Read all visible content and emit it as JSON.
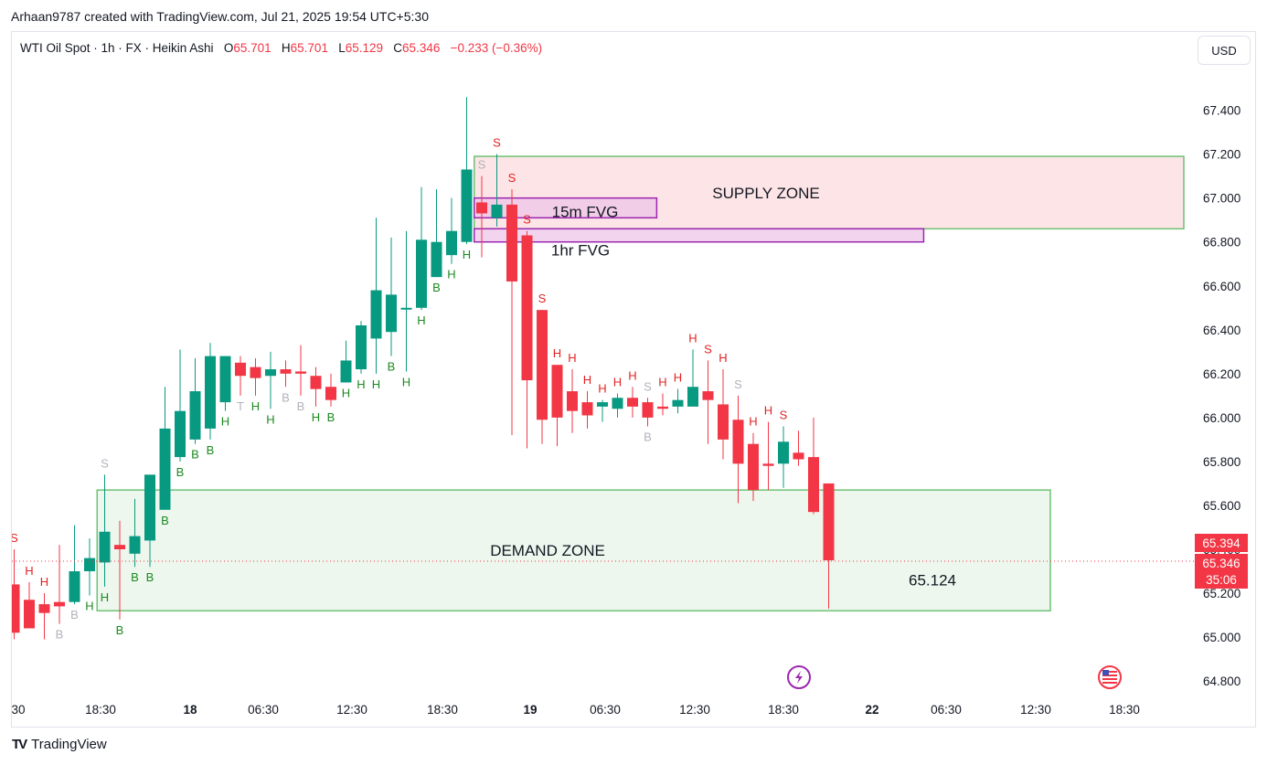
{
  "header": {
    "attribution": "Arhaan9787 created with TradingView.com, Jul 21, 2025 19:54 UTC+5:30"
  },
  "legend": {
    "symbol": "WTI Oil Spot · 1h · FX · Heikin Ashi",
    "open_label": "O",
    "open": "65.701",
    "high_label": "H",
    "high": "65.701",
    "low_label": "L",
    "low": "65.129",
    "close_label": "C",
    "close": "65.346",
    "change": "−0.233 (−0.36%)"
  },
  "currency_button": "USD",
  "footer": {
    "brand": "TradingView",
    "logo": "TV"
  },
  "colors": {
    "up": "#089981",
    "down": "#f23645",
    "supply_fill": "#fde4e6",
    "demand_fill": "#edf7ee",
    "zone_border": "#6fc275",
    "fvg_border": "#9c27b0",
    "fvg_fill": "#eec6e8",
    "label_green": "#1b8a1f",
    "label_red": "#e32222",
    "label_gray": "#b0b3bb",
    "event_icon": "#9c27b0",
    "flag_icon": "us-flag-icon"
  },
  "chart_data": {
    "type": "candlestick",
    "style": "Heikin Ashi",
    "y_axis": {
      "ticks": [
        "67.400",
        "67.200",
        "67.000",
        "66.800",
        "66.600",
        "66.400",
        "66.200",
        "66.000",
        "65.800",
        "65.600",
        "65.400",
        "65.200",
        "65.000",
        "64.800"
      ],
      "range": [
        64.72,
        67.62
      ],
      "side": "right"
    },
    "x_axis": {
      "ticks": [
        "30",
        "18:30",
        "18",
        "06:30",
        "12:30",
        "18:30",
        "19",
        "06:30",
        "12:30",
        "18:30",
        "22",
        "06:30",
        "12:30",
        "18:30"
      ]
    },
    "price_labels": [
      {
        "value": 65.394,
        "text": "65.394"
      },
      {
        "value": 65.346,
        "text": "65.346"
      }
    ],
    "countdown": "35:06",
    "current_price_line": 65.346,
    "candles": [
      [
        64.99,
        65.4,
        65.24,
        65.02
      ],
      [
        65.05,
        65.25,
        65.17,
        65.04
      ],
      [
        64.99,
        65.2,
        65.15,
        65.11
      ],
      [
        65.06,
        65.42,
        65.16,
        65.14
      ],
      [
        65.15,
        65.51,
        65.16,
        65.3
      ],
      [
        65.19,
        65.45,
        65.3,
        65.36
      ],
      [
        65.23,
        65.74,
        65.34,
        65.48
      ],
      [
        65.08,
        65.53,
        65.42,
        65.4
      ],
      [
        65.32,
        65.63,
        65.38,
        65.46
      ],
      [
        65.32,
        65.58,
        65.44,
        65.74
      ],
      [
        65.58,
        66.14,
        65.58,
        65.95
      ],
      [
        65.8,
        66.31,
        65.82,
        66.03
      ],
      [
        65.88,
        66.27,
        65.9,
        66.12
      ],
      [
        65.9,
        66.34,
        65.95,
        66.28
      ],
      [
        66.03,
        66.28,
        66.07,
        66.28
      ],
      [
        66.1,
        66.28,
        66.25,
        66.19
      ],
      [
        66.1,
        66.27,
        66.23,
        66.18
      ],
      [
        66.04,
        66.3,
        66.19,
        66.22
      ],
      [
        66.14,
        66.26,
        66.22,
        66.2
      ],
      [
        66.1,
        66.33,
        66.21,
        66.2
      ],
      [
        66.05,
        66.23,
        66.19,
        66.13
      ],
      [
        66.05,
        66.2,
        66.14,
        66.08
      ],
      [
        66.16,
        66.35,
        66.16,
        66.26
      ],
      [
        66.2,
        66.44,
        66.22,
        66.42
      ],
      [
        66.2,
        66.91,
        66.36,
        66.58
      ],
      [
        66.28,
        66.82,
        66.39,
        66.56
      ],
      [
        66.21,
        66.85,
        66.5,
        66.5
      ],
      [
        66.49,
        67.05,
        66.5,
        66.81
      ],
      [
        66.64,
        67.04,
        66.64,
        66.8
      ],
      [
        66.7,
        67.0,
        66.74,
        66.85
      ],
      [
        66.79,
        67.46,
        66.8,
        67.13
      ],
      [
        66.73,
        67.1,
        66.98,
        66.93
      ],
      [
        66.87,
        67.2,
        66.91,
        66.97
      ],
      [
        65.92,
        67.04,
        66.97,
        66.62
      ],
      [
        65.86,
        66.85,
        66.83,
        66.17
      ],
      [
        65.88,
        66.49,
        66.49,
        65.99
      ],
      [
        65.87,
        66.24,
        66.24,
        66.0
      ],
      [
        65.93,
        66.22,
        66.12,
        66.03
      ],
      [
        65.95,
        66.12,
        66.07,
        66.01
      ],
      [
        65.98,
        66.08,
        66.05,
        66.07
      ],
      [
        66.0,
        66.11,
        66.04,
        66.09
      ],
      [
        66.0,
        66.14,
        66.09,
        66.05
      ],
      [
        65.96,
        66.09,
        66.07,
        66.0
      ],
      [
        66.01,
        66.11,
        66.05,
        66.04
      ],
      [
        66.02,
        66.13,
        66.05,
        66.08
      ],
      [
        66.05,
        66.31,
        66.05,
        66.14
      ],
      [
        65.88,
        66.26,
        66.12,
        66.08
      ],
      [
        65.81,
        66.22,
        66.06,
        65.9
      ],
      [
        65.61,
        66.1,
        65.99,
        65.79
      ],
      [
        65.62,
        65.93,
        65.88,
        65.67
      ],
      [
        65.67,
        65.98,
        65.79,
        65.78
      ],
      [
        65.68,
        65.96,
        65.79,
        65.89
      ],
      [
        65.78,
        65.94,
        65.84,
        65.81
      ],
      [
        65.56,
        66.0,
        65.82,
        65.57
      ],
      [
        65.13,
        65.7,
        65.7,
        65.35
      ]
    ],
    "signals": [
      {
        "i": 0,
        "t": "S",
        "c": "red",
        "p": "above"
      },
      {
        "i": 1,
        "t": "H",
        "c": "red",
        "p": "above"
      },
      {
        "i": 2,
        "t": "H",
        "c": "red",
        "p": "above"
      },
      {
        "i": 3,
        "t": "B",
        "c": "gray",
        "p": "below"
      },
      {
        "i": 4,
        "t": "B",
        "c": "gray",
        "p": "below"
      },
      {
        "i": 5,
        "t": "H",
        "c": "green",
        "p": "below"
      },
      {
        "i": 6,
        "t": "S",
        "c": "gray",
        "p": "above"
      },
      {
        "i": 6,
        "t": "H",
        "c": "green",
        "p": "below"
      },
      {
        "i": 7,
        "t": "B",
        "c": "green",
        "p": "below"
      },
      {
        "i": 8,
        "t": "B",
        "c": "green",
        "p": "below"
      },
      {
        "i": 9,
        "t": "B",
        "c": "green",
        "p": "below"
      },
      {
        "i": 10,
        "t": "B",
        "c": "green",
        "p": "below"
      },
      {
        "i": 11,
        "t": "B",
        "c": "green",
        "p": "below"
      },
      {
        "i": 12,
        "t": "B",
        "c": "green",
        "p": "below"
      },
      {
        "i": 13,
        "t": "B",
        "c": "green",
        "p": "below"
      },
      {
        "i": 14,
        "t": "H",
        "c": "green",
        "p": "below"
      },
      {
        "i": 15,
        "t": "T",
        "c": "gray",
        "p": "below"
      },
      {
        "i": 16,
        "t": "H",
        "c": "green",
        "p": "below"
      },
      {
        "i": 17,
        "t": "H",
        "c": "green",
        "p": "below"
      },
      {
        "i": 18,
        "t": "B",
        "c": "gray",
        "p": "below"
      },
      {
        "i": 19,
        "t": "B",
        "c": "gray",
        "p": "below"
      },
      {
        "i": 20,
        "t": "H",
        "c": "green",
        "p": "below"
      },
      {
        "i": 21,
        "t": "B",
        "c": "green",
        "p": "below"
      },
      {
        "i": 22,
        "t": "H",
        "c": "green",
        "p": "below"
      },
      {
        "i": 23,
        "t": "H",
        "c": "green",
        "p": "below"
      },
      {
        "i": 24,
        "t": "H",
        "c": "green",
        "p": "below"
      },
      {
        "i": 25,
        "t": "B",
        "c": "green",
        "p": "below"
      },
      {
        "i": 26,
        "t": "H",
        "c": "green",
        "p": "below"
      },
      {
        "i": 27,
        "t": "H",
        "c": "green",
        "p": "below"
      },
      {
        "i": 28,
        "t": "B",
        "c": "green",
        "p": "below"
      },
      {
        "i": 29,
        "t": "H",
        "c": "green",
        "p": "below"
      },
      {
        "i": 30,
        "t": "H",
        "c": "green",
        "p": "below"
      },
      {
        "i": 31,
        "t": "S",
        "c": "gray",
        "p": "above"
      },
      {
        "i": 32,
        "t": "S",
        "c": "red",
        "p": "above"
      },
      {
        "i": 33,
        "t": "S",
        "c": "red",
        "p": "above"
      },
      {
        "i": 34,
        "t": "S",
        "c": "red",
        "p": "above"
      },
      {
        "i": 35,
        "t": "S",
        "c": "red",
        "p": "above"
      },
      {
        "i": 36,
        "t": "H",
        "c": "red",
        "p": "above"
      },
      {
        "i": 37,
        "t": "H",
        "c": "red",
        "p": "above"
      },
      {
        "i": 38,
        "t": "H",
        "c": "red",
        "p": "above"
      },
      {
        "i": 39,
        "t": "H",
        "c": "red",
        "p": "above"
      },
      {
        "i": 40,
        "t": "H",
        "c": "red",
        "p": "above"
      },
      {
        "i": 41,
        "t": "H",
        "c": "red",
        "p": "above"
      },
      {
        "i": 42,
        "t": "S",
        "c": "gray",
        "p": "above"
      },
      {
        "i": 42,
        "t": "B",
        "c": "gray",
        "p": "below"
      },
      {
        "i": 43,
        "t": "H",
        "c": "red",
        "p": "above"
      },
      {
        "i": 44,
        "t": "H",
        "c": "red",
        "p": "above"
      },
      {
        "i": 45,
        "t": "H",
        "c": "red",
        "p": "above"
      },
      {
        "i": 46,
        "t": "S",
        "c": "red",
        "p": "above"
      },
      {
        "i": 47,
        "t": "H",
        "c": "red",
        "p": "above"
      },
      {
        "i": 48,
        "t": "S",
        "c": "gray",
        "p": "above"
      },
      {
        "i": 49,
        "t": "H",
        "c": "red",
        "p": "above"
      },
      {
        "i": 50,
        "t": "H",
        "c": "red",
        "p": "above"
      },
      {
        "i": 51,
        "t": "S",
        "c": "red",
        "p": "above"
      }
    ],
    "zones": [
      {
        "label": "SUPPLY ZONE",
        "top": 67.19,
        "bottom": 66.86,
        "start_candle": 30.5,
        "end": "right",
        "kind": "supply"
      },
      {
        "label": "DEMAND ZONE",
        "top": 65.67,
        "bottom": 65.12,
        "start_candle": 5.5,
        "end_time": "13:30",
        "kind": "demand",
        "level_text": "65.124"
      }
    ],
    "fvgs": [
      {
        "label": "15m FVG",
        "top": 67.0,
        "bottom": 66.91,
        "start_candle": 30.5,
        "end_candle": 42.6
      },
      {
        "label": "1hr FVG",
        "top": 66.86,
        "bottom": 66.8,
        "start_candle": 30.5,
        "end_candle": 60.3
      }
    ]
  }
}
